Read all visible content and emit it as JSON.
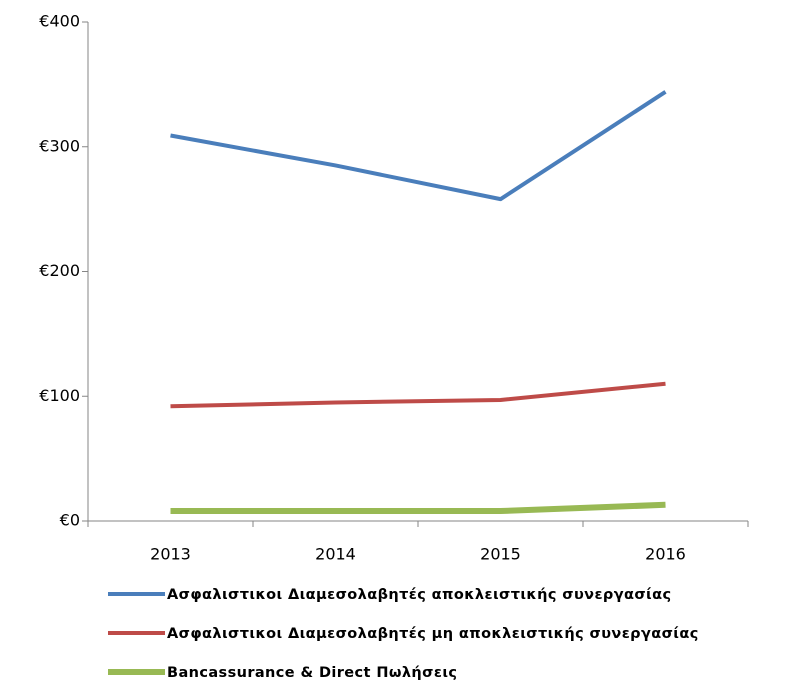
{
  "chart_data": {
    "type": "line",
    "categories": [
      "2013",
      "2014",
      "2015",
      "2016"
    ],
    "series": [
      {
        "name": "Ασφαλιστικοι Διαμεσολαβητές αποκλειστικής συνεργασίας",
        "color": "#4a7ebb",
        "values": [
          309,
          285,
          258,
          344
        ]
      },
      {
        "name": "Ασφαλιστικοι Διαμεσολαβητές μη αποκλειστικής συνεργασίας",
        "color": "#be4b48",
        "values": [
          92,
          95,
          97,
          110
        ]
      },
      {
        "name": "Bancassurance & Direct Πωλήσεις",
        "color": "#98b954",
        "values": [
          8,
          8,
          8,
          13
        ]
      }
    ],
    "ylim": [
      0,
      400
    ],
    "yticks": [
      {
        "value": 0,
        "label": "€0"
      },
      {
        "value": 100,
        "label": "€100"
      },
      {
        "value": 200,
        "label": "€200"
      },
      {
        "value": 300,
        "label": "€300"
      },
      {
        "value": 400,
        "label": "€400"
      }
    ],
    "legend": "bottom"
  }
}
